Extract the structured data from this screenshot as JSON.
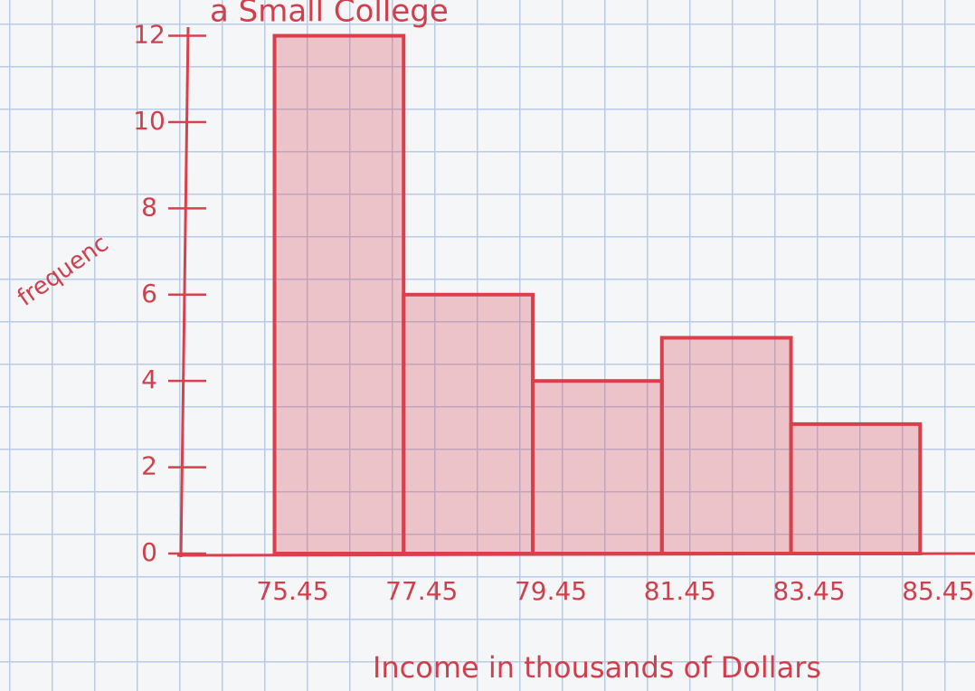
{
  "chart_data": {
    "type": "histogram",
    "title": "a Small College",
    "xlabel": "Income in thousands of Dollars",
    "ylabel": "frequenc",
    "bins": [
      75.45,
      77.45,
      79.45,
      81.45,
      83.45,
      85.45
    ],
    "counts": [
      12,
      6,
      4,
      5,
      3
    ],
    "color": "#d8404c",
    "xlim": [
      74,
      86.3
    ],
    "ylim": [
      0,
      12.2
    ],
    "xticks": [
      75.45,
      77.45,
      79.45,
      81.45,
      83.45,
      85.45
    ],
    "yticks": [
      0,
      2,
      4,
      6,
      8,
      10,
      12
    ]
  }
}
